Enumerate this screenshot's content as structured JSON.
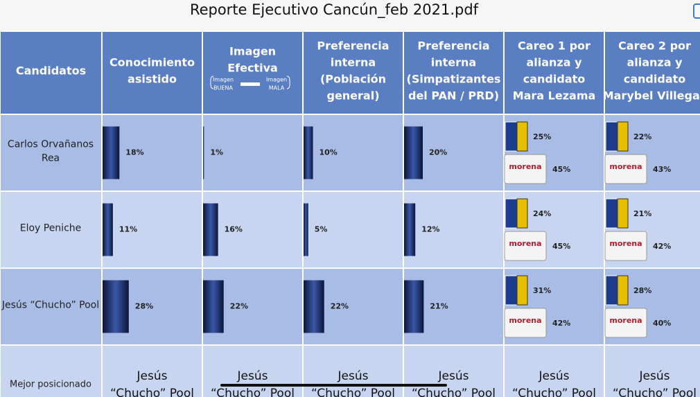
{
  "header": {
    "title": "Reporte Ejecutivo Cancún_feb 2021.pdf"
  },
  "table": {
    "columns": [
      [
        "Candidatos"
      ],
      [
        "Conocimiento",
        "asistido"
      ],
      [
        "Imagen",
        "Efectiva"
      ],
      [
        "Preferencia",
        "interna",
        "(Población",
        "general)"
      ],
      [
        "Preferencia",
        "interna",
        "(Simpatizantes",
        "del PAN / PRD)"
      ],
      [
        "Careo 1 por",
        "alianza  y",
        "candidato",
        "Mara Lezama"
      ],
      [
        "Careo 2 por",
        "alianza  y",
        "candidato",
        "Marybel Villegas"
      ]
    ],
    "image_legend": {
      "good": [
        "Imagen",
        "BUENA"
      ],
      "bad": [
        "Imagen",
        "MALA"
      ]
    },
    "logo_text": "morena",
    "rows": [
      {
        "name": [
          "Carlos Orvañanos",
          "Rea"
        ],
        "cells": [
          {
            "value": 18,
            "label": "18%"
          },
          {
            "value": 1,
            "label": "1%"
          },
          {
            "value": 10,
            "label": "10%"
          },
          {
            "value": 20,
            "label": "20%"
          }
        ],
        "matchups": [
          {
            "alliance": {
              "value": 25,
              "label": "25%"
            },
            "morena": {
              "value": 45,
              "label": "45%"
            }
          },
          {
            "alliance": {
              "value": 22,
              "label": "22%"
            },
            "morena": {
              "value": 43,
              "label": "43%"
            }
          }
        ]
      },
      {
        "name": [
          "Eloy Peniche"
        ],
        "cells": [
          {
            "value": 11,
            "label": "11%"
          },
          {
            "value": 16,
            "label": "16%"
          },
          {
            "value": 5,
            "label": "5%"
          },
          {
            "value": 12,
            "label": "12%"
          }
        ],
        "matchups": [
          {
            "alliance": {
              "value": 24,
              "label": "24%"
            },
            "morena": {
              "value": 45,
              "label": "45%"
            }
          },
          {
            "alliance": {
              "value": 21,
              "label": "21%"
            },
            "morena": {
              "value": 42,
              "label": "42%"
            }
          }
        ]
      },
      {
        "name": [
          "Jesús “Chucho” Pool"
        ],
        "cells": [
          {
            "value": 28,
            "label": "28%"
          },
          {
            "value": 22,
            "label": "22%"
          },
          {
            "value": 22,
            "label": "22%"
          },
          {
            "value": 21,
            "label": "21%"
          }
        ],
        "matchups": [
          {
            "alliance": {
              "value": 31,
              "label": "31%"
            },
            "morena": {
              "value": 42,
              "label": "42%"
            }
          },
          {
            "alliance": {
              "value": 28,
              "label": "28%"
            },
            "morena": {
              "value": 40,
              "label": "40%"
            }
          }
        ]
      }
    ],
    "best": {
      "label": "Mejor posicionado",
      "cells": [
        [
          "Jesús",
          "“Chucho” Pool"
        ],
        [
          "Jesús",
          "“Chucho” Pool"
        ],
        [
          "Jesús",
          "“Chucho” Pool"
        ],
        [
          "Jesús",
          "“Chucho” Pool"
        ],
        [
          "Jesús",
          "“Chucho” Pool"
        ],
        [
          "Jesús",
          "“Chucho” Pool"
        ]
      ]
    }
  }
}
